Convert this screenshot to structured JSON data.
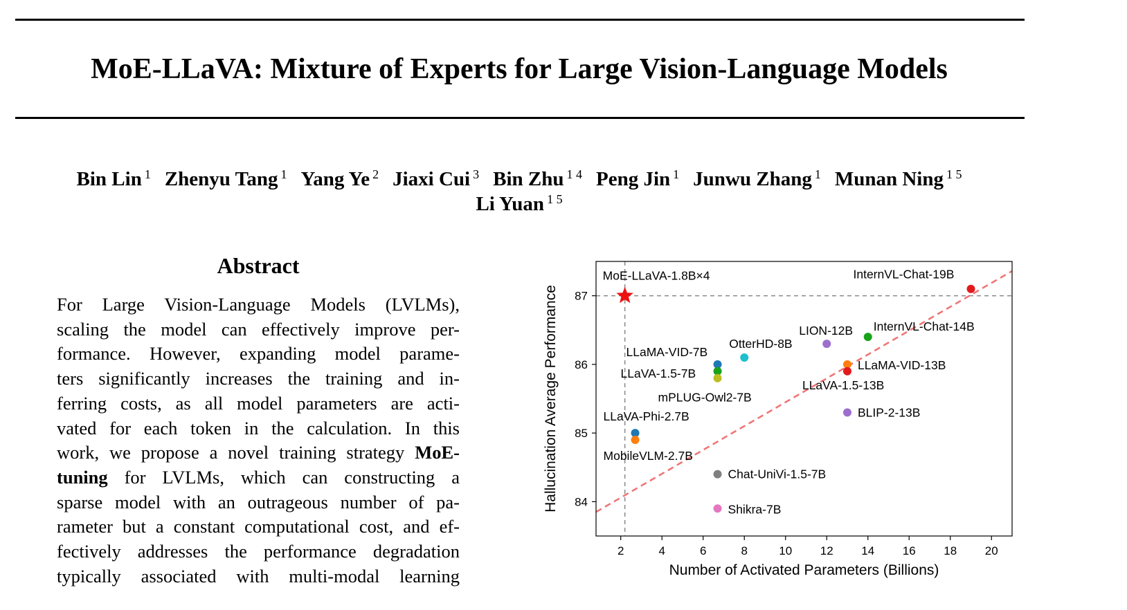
{
  "paper": {
    "title": "MoE-LLaVA: Mixture of Experts for Large Vision-Language Models",
    "authors_line1": [
      {
        "name": "Bin Lin",
        "aff": "1"
      },
      {
        "name": "Zhenyu Tang",
        "aff": "1"
      },
      {
        "name": "Yang Ye",
        "aff": "2"
      },
      {
        "name": "Jiaxi Cui",
        "aff": "3"
      },
      {
        "name": "Bin Zhu",
        "aff": "1 4"
      },
      {
        "name": "Peng Jin",
        "aff": "1"
      },
      {
        "name": "Junwu Zhang",
        "aff": "1"
      },
      {
        "name": "Munan Ning",
        "aff": "1 5"
      }
    ],
    "authors_line2": [
      {
        "name": "Li Yuan",
        "aff": "1 5"
      }
    ],
    "abstract_heading": "Abstract",
    "abstract_lines": [
      "For Large Vision-Language Models (LVLMs),",
      "scaling the model can effectively improve per-",
      "formance. However, expanding model parame-",
      "ters significantly increases the training and in-",
      "ferring costs, as all model parameters are acti-",
      "vated for each token in the calculation. In this",
      [
        "work, we propose a novel training strategy ",
        "MoE-"
      ],
      [
        "tuning",
        " for LVLMs, which can constructing a"
      ],
      "sparse model with an outrageous number of pa-",
      "rameter but a constant computational cost, and ef-",
      "fectively addresses the performance degradation",
      "typically associated with multi-modal learning"
    ]
  },
  "chart_data": {
    "type": "scatter",
    "xlabel": "Number of Activated Parameters (Billions)",
    "ylabel": "Hallucination Average Performance",
    "xlim": [
      0.8,
      21.0
    ],
    "ylim": [
      83.5,
      87.5
    ],
    "xticks": [
      2,
      4,
      6,
      8,
      10,
      12,
      14,
      16,
      18,
      20
    ],
    "yticks": [
      84,
      85,
      86,
      87
    ],
    "reference_lines": {
      "x": 2.2,
      "y": 87.0,
      "style": "dashed",
      "color": "#888888"
    },
    "trend_line": {
      "from": [
        0.8,
        83.85
      ],
      "to": [
        21.0,
        87.36
      ],
      "style": "dashed",
      "color": "#ef7676"
    },
    "highlight": {
      "name": "MoE-LLaVA-1.8B×4",
      "x": 2.2,
      "y": 87.0,
      "marker": "star",
      "color": "#ee1111"
    },
    "points": [
      {
        "name": "InternVL-Chat-19B",
        "x": 19,
        "y": 87.1,
        "color": "#e31a1c"
      },
      {
        "name": "InternVL-Chat-14B",
        "x": 14,
        "y": 86.4,
        "color": "#19a319"
      },
      {
        "name": "LION-12B",
        "x": 12,
        "y": 86.3,
        "color": "#9c6fce"
      },
      {
        "name": "OtterHD-8B",
        "x": 8,
        "y": 86.1,
        "color": "#1fbfcf"
      },
      {
        "name": "LLaMA-VID-7B",
        "x": 6.7,
        "y": 86.0,
        "color": "#1f77b4"
      },
      {
        "name": "LLaVA-1.5-7B",
        "x": 6.7,
        "y": 85.9,
        "color": "#19a319"
      },
      {
        "name": "mPLUG-Owl2-7B",
        "x": 6.7,
        "y": 85.8,
        "color": "#bcbd22"
      },
      {
        "name": "LLaMA-VID-13B",
        "x": 13,
        "y": 86.0,
        "color": "#ff7f0e"
      },
      {
        "name": "LLaVA-1.5-13B",
        "x": 13,
        "y": 85.9,
        "color": "#e31a1c"
      },
      {
        "name": "BLIP-2-13B",
        "x": 13,
        "y": 85.3,
        "color": "#9c6fce"
      },
      {
        "name": "LLaVA-Phi-2.7B",
        "x": 2.7,
        "y": 85.0,
        "color": "#1f77b4"
      },
      {
        "name": "MobileVLM-2.7B",
        "x": 2.7,
        "y": 84.9,
        "color": "#ff7f0e"
      },
      {
        "name": "Chat-UniVi-1.5-7B",
        "x": 6.7,
        "y": 84.4,
        "color": "#7f7f7f"
      },
      {
        "name": "Shikra-7B",
        "x": 6.7,
        "y": 83.9,
        "color": "#e377c2"
      }
    ]
  }
}
